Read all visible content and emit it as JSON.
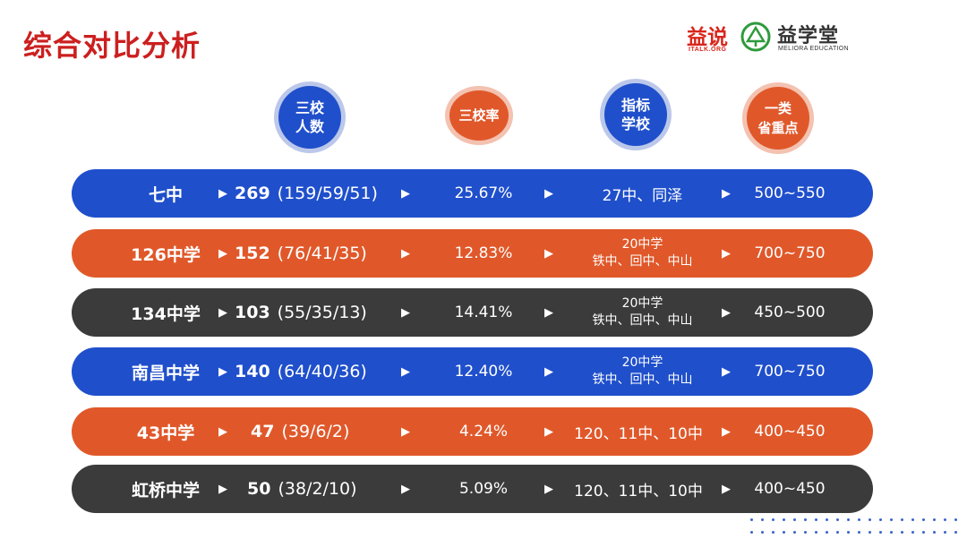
{
  "title": "综合对比分析",
  "logo": {
    "main": "益说",
    "sub": "ITALK.ORG",
    "cn": "益学堂",
    "en": "MELIORA EDUCATION"
  },
  "headers": [
    {
      "line1": "三校",
      "line2": "人数"
    },
    {
      "line1": "三校率",
      "line2": ""
    },
    {
      "line1": "指标",
      "line2": "学校"
    },
    {
      "line1": "一类",
      "line2": "省重点"
    }
  ],
  "colors": {
    "blue": "#1f4fcb",
    "orange": "#e0582a",
    "dark": "#3b3b3b",
    "title_red": "#cc1f1f"
  },
  "rows": [
    {
      "name": "七中",
      "total": "269",
      "split": "(159/59/51)",
      "rate": "25.67%",
      "indicator_top": "",
      "indicator": "27中、同泽",
      "score": "500~550"
    },
    {
      "name": "126中学",
      "total": "152",
      "split": "(76/41/35)",
      "rate": "12.83%",
      "indicator_top": "20中学",
      "indicator": "铁中、回中、中山",
      "score": "700~750"
    },
    {
      "name": "134中学",
      "total": "103",
      "split": "(55/35/13)",
      "rate": "14.41%",
      "indicator_top": "20中学",
      "indicator": "铁中、回中、中山",
      "score": "450~500"
    },
    {
      "name": "南昌中学",
      "total": "140",
      "split": "(64/40/36)",
      "rate": "12.40%",
      "indicator_top": "20中学",
      "indicator": "铁中、回中、中山",
      "score": "700~750"
    },
    {
      "name": "43中学",
      "total": "47",
      "split": "(39/6/2)",
      "rate": "4.24%",
      "indicator_top": "",
      "indicator": "120、11中、10中",
      "score": "400~450"
    },
    {
      "name": "虹桥中学",
      "total": "50",
      "split": "(38/2/10)",
      "rate": "5.09%",
      "indicator_top": "",
      "indicator": "120、11中、10中",
      "score": "400~450"
    }
  ]
}
